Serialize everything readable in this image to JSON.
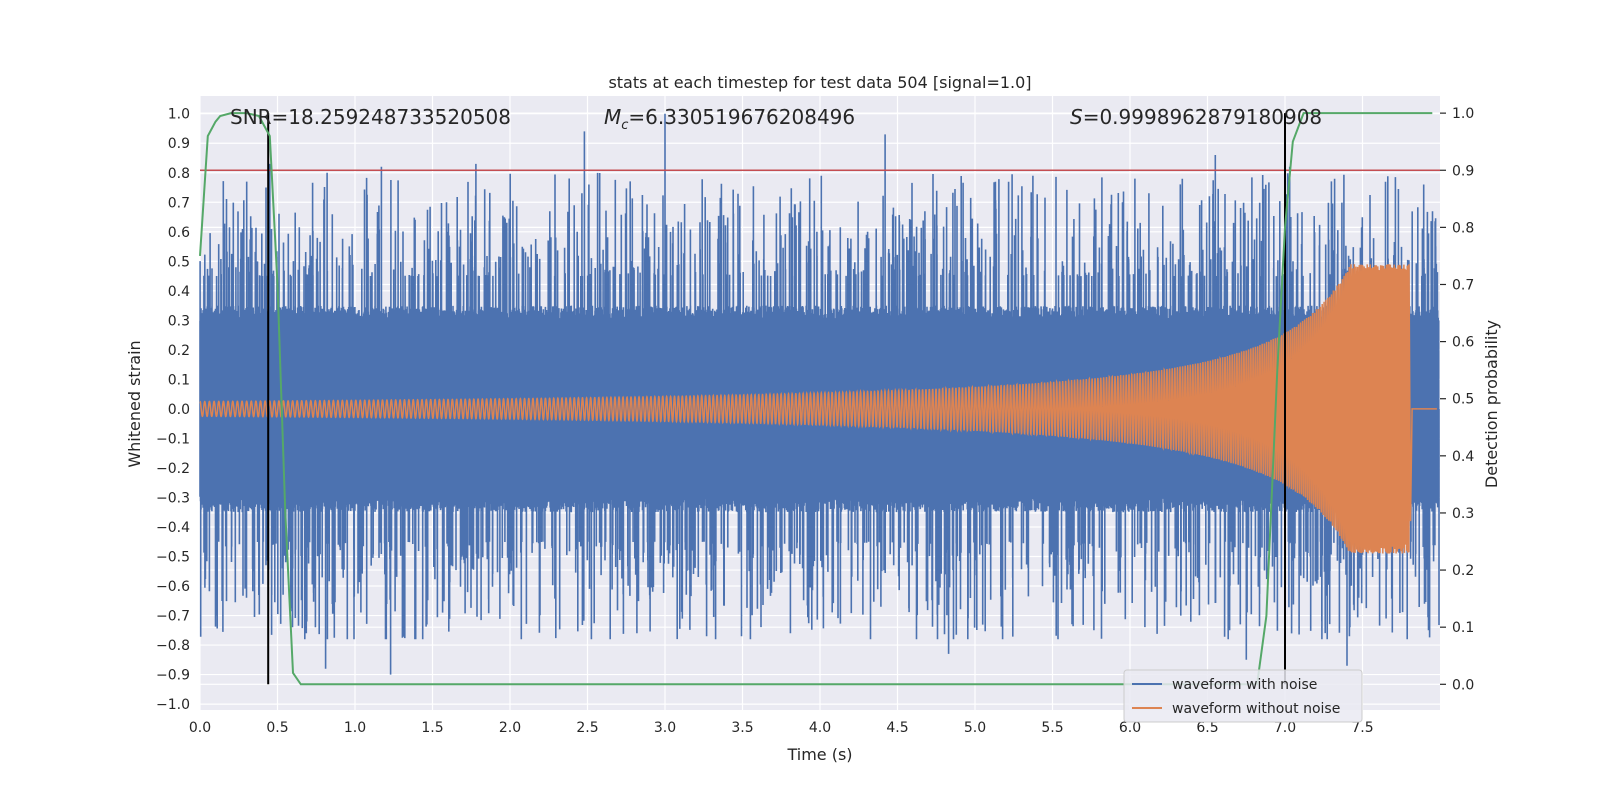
{
  "chart_data": {
    "type": "line",
    "title": "stats at each timestep for test data 504 [signal=1.0]",
    "xlabel": "Time (s)",
    "ylabel": "Whitened strain",
    "y2label": "Detection probability",
    "xlim": [
      0.0,
      8.0
    ],
    "ylim": [
      -1.02,
      1.06
    ],
    "y2lim": [
      -0.045,
      1.03
    ],
    "x_ticks": [
      0.0,
      0.5,
      1.0,
      1.5,
      2.0,
      2.5,
      3.0,
      3.5,
      4.0,
      4.5,
      5.0,
      5.5,
      6.0,
      6.5,
      7.0,
      7.5
    ],
    "x_tick_labels": [
      "0.0",
      "0.5",
      "1.0",
      "1.5",
      "2.0",
      "2.5",
      "3.0",
      "3.5",
      "4.0",
      "4.5",
      "5.0",
      "5.5",
      "6.0",
      "6.5",
      "7.0",
      "7.5"
    ],
    "y_ticks": [
      -1.0,
      -0.9,
      -0.8,
      -0.7,
      -0.6,
      -0.5,
      -0.4,
      -0.3,
      -0.2,
      -0.1,
      0.0,
      0.1,
      0.2,
      0.3,
      0.4,
      0.5,
      0.6,
      0.7,
      0.8,
      0.9,
      1.0
    ],
    "y_tick_labels": [
      "−1.0",
      "−0.9",
      "−0.8",
      "−0.7",
      "−0.6",
      "−0.5",
      "−0.4",
      "−0.3",
      "−0.2",
      "−0.1",
      "0.0",
      "0.1",
      "0.2",
      "0.3",
      "0.4",
      "0.5",
      "0.6",
      "0.7",
      "0.8",
      "0.9",
      "1.0"
    ],
    "y2_ticks": [
      0.0,
      0.1,
      0.2,
      0.3,
      0.4,
      0.5,
      0.6,
      0.7,
      0.8,
      0.9,
      1.0
    ],
    "y2_tick_labels": [
      "0.0",
      "0.1",
      "0.2",
      "0.3",
      "0.4",
      "0.5",
      "0.6",
      "0.7",
      "0.8",
      "0.9",
      "1.0"
    ],
    "annotations": {
      "snr": "SNR=18.259248733520508",
      "mc_symbol": "M",
      "mc_sub": "c",
      "mc_value": "=6.330519676208496",
      "s_symbol": "S",
      "s_value": "=0.9998962879180908"
    },
    "series": [
      {
        "name": "waveform with noise",
        "color": "#4c72b0",
        "axis": "left",
        "t_end": 7.995,
        "band_amplitude": 0.35,
        "peak_range": [
          0.45,
          1.0
        ],
        "notable_peaks": [
          {
            "x": 0.45,
            "y": 0.83
          },
          {
            "x": 0.82,
            "y": 0.8
          },
          {
            "x": 1.17,
            "y": 0.82
          },
          {
            "x": 1.78,
            "y": 0.83
          },
          {
            "x": 2.48,
            "y": 0.94
          },
          {
            "x": 3.0,
            "y": 1.0
          },
          {
            "x": 4.42,
            "y": 0.93
          },
          {
            "x": 6.55,
            "y": 0.86
          },
          {
            "x": 7.03,
            "y": 0.82
          },
          {
            "x": 0.81,
            "y": -0.88
          },
          {
            "x": 1.23,
            "y": -0.9
          },
          {
            "x": 4.83,
            "y": -0.83
          },
          {
            "x": 6.75,
            "y": -0.85
          },
          {
            "x": 7.4,
            "y": -0.87
          }
        ]
      },
      {
        "name": "waveform without noise",
        "color": "#dd8452",
        "axis": "left",
        "t_start": 0.0,
        "t_merger": 7.8,
        "amplitude_start": 0.025,
        "amplitude_peak": 0.49,
        "amplitude_min": -0.38
      },
      {
        "name": "detection probability",
        "color": "#55a868",
        "axis": "right",
        "x": [
          0.0,
          0.05,
          0.1,
          0.13,
          0.2,
          0.3,
          0.38,
          0.45,
          0.5,
          0.55,
          0.6,
          0.65,
          6.82,
          6.88,
          6.95,
          7.0,
          7.05,
          7.12,
          7.95
        ],
        "y": [
          0.75,
          0.96,
          0.985,
          0.995,
          1.0,
          1.0,
          0.995,
          0.96,
          0.7,
          0.3,
          0.02,
          0.0,
          0.0,
          0.12,
          0.55,
          0.8,
          0.95,
          1.0,
          1.0
        ]
      }
    ],
    "threshold_line": {
      "y2": 0.9,
      "color": "#c44e52"
    },
    "vertical_markers": [
      {
        "x": 0.44,
        "y2_range": [
          0.0,
          1.0
        ],
        "color": "#000000"
      },
      {
        "x": 7.0,
        "y2_range": [
          0.0,
          1.0
        ],
        "color": "#000000"
      }
    ],
    "legend": {
      "position": "bottom-right",
      "entries": [
        {
          "label": "waveform with noise",
          "color": "#4c72b0"
        },
        {
          "label": "waveform without noise",
          "color": "#dd8452"
        }
      ]
    }
  }
}
